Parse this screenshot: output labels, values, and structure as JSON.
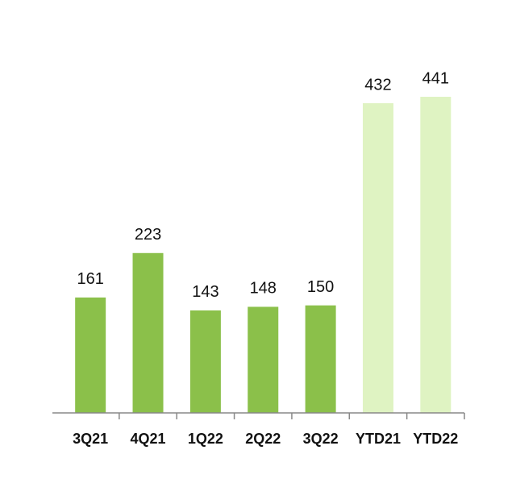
{
  "chart_data": {
    "type": "bar",
    "categories": [
      "3Q21",
      "4Q21",
      "1Q22",
      "2Q22",
      "3Q22",
      "YTD21",
      "YTD22"
    ],
    "values": [
      161,
      223,
      143,
      148,
      150,
      432,
      441
    ],
    "colors": [
      "#8bc04a",
      "#8bc04a",
      "#8bc04a",
      "#8bc04a",
      "#8bc04a",
      "#dff3c2",
      "#dff3c2"
    ]
  }
}
